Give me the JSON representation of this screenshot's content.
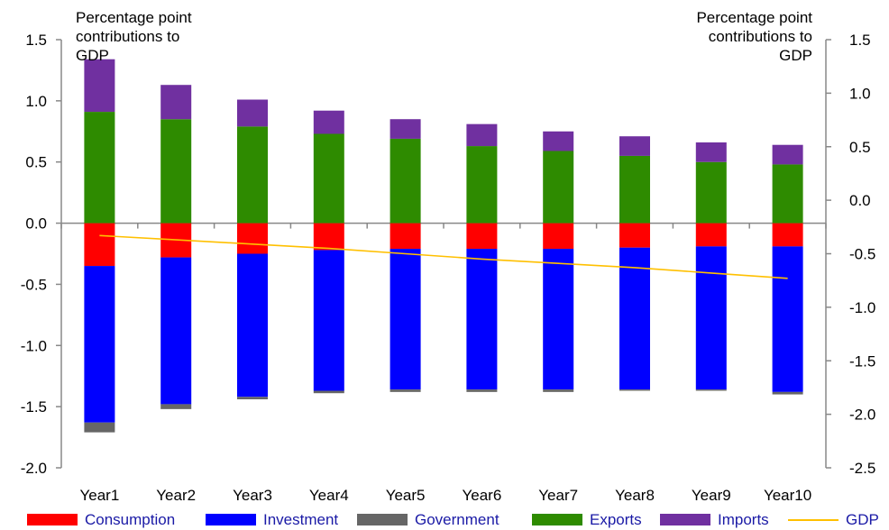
{
  "chart_data": {
    "type": "bar",
    "stacked": true,
    "categories": [
      "Year1",
      "Year2",
      "Year3",
      "Year4",
      "Year5",
      "Year6",
      "Year7",
      "Year8",
      "Year9",
      "Year10"
    ],
    "series": [
      {
        "name": "Consumption",
        "color": "#ff0000",
        "values": [
          -0.35,
          -0.28,
          -0.25,
          -0.22,
          -0.21,
          -0.21,
          -0.21,
          -0.2,
          -0.19,
          -0.19
        ]
      },
      {
        "name": "Investment",
        "color": "#0000ff",
        "values": [
          -1.28,
          -1.2,
          -1.17,
          -1.15,
          -1.15,
          -1.15,
          -1.15,
          -1.16,
          -1.17,
          -1.19
        ]
      },
      {
        "name": "Government",
        "color": "#666666",
        "values": [
          -0.08,
          -0.04,
          -0.02,
          -0.02,
          -0.02,
          -0.02,
          -0.02,
          -0.01,
          -0.01,
          -0.02
        ]
      },
      {
        "name": "Exports",
        "color": "#2e8b00",
        "values": [
          0.91,
          0.85,
          0.79,
          0.73,
          0.69,
          0.63,
          0.59,
          0.55,
          0.5,
          0.48
        ]
      },
      {
        "name": "Imports",
        "color": "#7030a0",
        "values": [
          0.43,
          0.28,
          0.22,
          0.19,
          0.16,
          0.18,
          0.16,
          0.16,
          0.16,
          0.16
        ]
      }
    ],
    "line_series": {
      "name": "GDP",
      "color": "#ffc000",
      "axis": "right",
      "values": [
        -0.33,
        -0.37,
        -0.41,
        -0.45,
        -0.5,
        -0.55,
        -0.59,
        -0.63,
        -0.68,
        -0.73
      ]
    },
    "ylabel_left": "Percentage point contributions to GDP",
    "ylabel_right": "Percentage point contributions to GDP",
    "ylim_left": [
      -2.0,
      1.5
    ],
    "ylim_right": [
      -2.5,
      1.5
    ],
    "yticks_left": [
      "1.5",
      "1.0",
      "0.5",
      "0.0",
      "-0.5",
      "-1.0",
      "-1.5",
      "-2.0"
    ],
    "yticks_right": [
      "1.5",
      "1.0",
      "0.5",
      "0.0",
      "-0.5",
      "-1.0",
      "-1.5",
      "-2.0",
      "-2.5"
    ],
    "grid": false,
    "legend_position": "bottom"
  },
  "legend": {
    "items": [
      {
        "label": "Consumption",
        "color": "#ff0000",
        "kind": "bar"
      },
      {
        "label": "Investment",
        "color": "#0000ff",
        "kind": "bar"
      },
      {
        "label": "Government",
        "color": "#666666",
        "kind": "bar"
      },
      {
        "label": "Exports",
        "color": "#2e8b00",
        "kind": "bar"
      },
      {
        "label": "Imports",
        "color": "#7030a0",
        "kind": "bar"
      },
      {
        "label": "GDP",
        "color": "#ffc000",
        "kind": "line"
      }
    ]
  }
}
